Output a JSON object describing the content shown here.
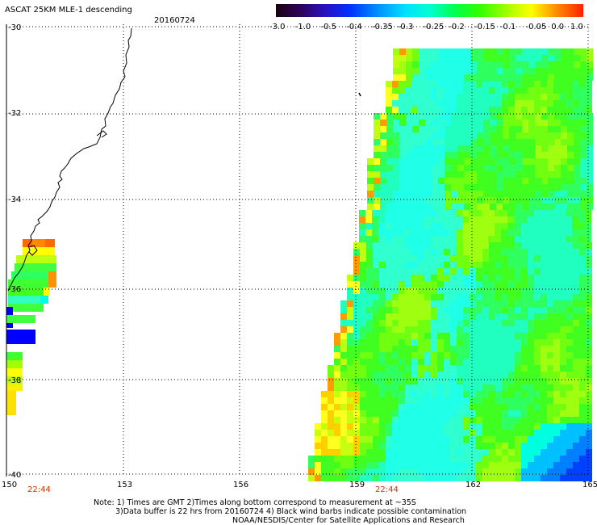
{
  "header": {
    "title": "ASCAT 25KM MLE-1 descending",
    "date": "20160724"
  },
  "colorbar": {
    "tick_labels": [
      "-3.0",
      "-1.0",
      "-0.5",
      "-0.4",
      "-0.35",
      "-0.3",
      "-0.25",
      "-0.2",
      "-0.15",
      "-0.1",
      "-0.05",
      "0.0",
      "1.0"
    ],
    "colors": [
      "#1a0010",
      "#3a0060",
      "#3a1ad0",
      "#0030ff",
      "#0090ff",
      "#00d8ff",
      "#00ffc0",
      "#00ff40",
      "#40ff00",
      "#a0ff00",
      "#ffff00",
      "#ff9000",
      "#ff2000"
    ]
  },
  "axes": {
    "lon_labels": [
      "150",
      "153",
      "156",
      "159",
      "162",
      "165"
    ],
    "lat_labels": [
      "-30",
      "-32",
      "-34",
      "-36",
      "-38",
      "-40"
    ]
  },
  "time_labels": [
    "22:44",
    "22:44"
  ],
  "footer": {
    "line1": "Note: 1) Times are GMT 2)Times along bottom correspond to measurement at ~35S",
    "line2": "3)Data buffer is 22 hrs from 20160724 4) Black wind barbs indicate possible contamination",
    "line3": "NOAA/NESDIS/Center for Satellite Applications and Research"
  },
  "legend_colors": {
    "swath_main": "#40ff30",
    "swath_low": "#40ffe0",
    "coast": "#000000"
  }
}
